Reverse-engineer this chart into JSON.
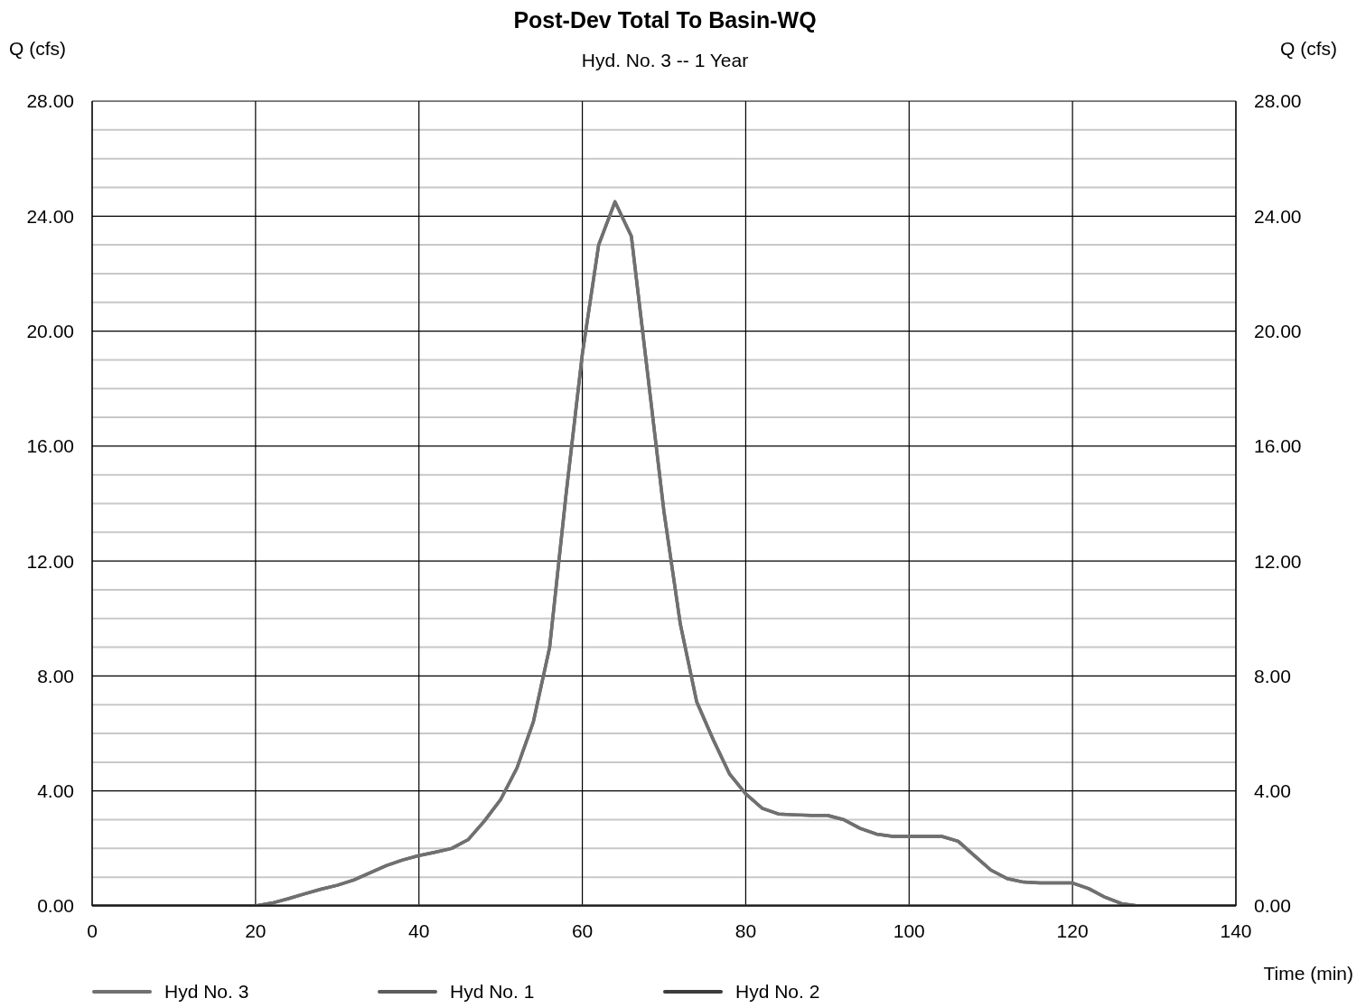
{
  "chart_data": {
    "type": "line",
    "title": "Post-Dev Total To Basin-WQ",
    "subtitle": "Hyd. No. 3 -- 1 Year",
    "xlabel": "Time (min)",
    "ylabel": "Q (cfs)",
    "y2label": "Q (cfs)",
    "x": [
      0,
      2,
      4,
      6,
      8,
      10,
      12,
      14,
      16,
      18,
      20,
      22,
      24,
      26,
      28,
      30,
      32,
      34,
      36,
      38,
      40,
      42,
      44,
      46,
      48,
      50,
      52,
      54,
      56,
      58,
      60,
      62,
      64,
      66,
      68,
      70,
      72,
      74,
      76,
      78,
      80,
      82,
      84,
      86,
      88,
      90,
      92,
      94,
      96,
      98,
      100,
      102,
      104,
      106,
      108,
      110,
      112,
      114,
      116,
      118,
      120,
      122,
      124,
      126,
      128,
      130,
      132,
      134,
      136,
      138,
      140
    ],
    "series": [
      {
        "name": "Hyd No. 3",
        "color": "#707070",
        "values": [
          0,
          0,
          0,
          0,
          0,
          0,
          0,
          0,
          0,
          0,
          0,
          0.1,
          0.25,
          0.42,
          0.58,
          0.72,
          0.9,
          1.15,
          1.4,
          1.6,
          1.75,
          1.87,
          2.0,
          2.3,
          2.95,
          3.7,
          4.8,
          6.4,
          9.0,
          14.3,
          19.2,
          23.0,
          24.5,
          23.3,
          18.5,
          13.7,
          9.8,
          7.1,
          5.8,
          4.6,
          3.9,
          3.4,
          3.2,
          3.17,
          3.15,
          3.15,
          3.0,
          2.7,
          2.5,
          2.42,
          2.42,
          2.42,
          2.42,
          2.25,
          1.75,
          1.25,
          0.95,
          0.83,
          0.8,
          0.8,
          0.8,
          0.6,
          0.3,
          0.08,
          0,
          0,
          0,
          0,
          0,
          0,
          0
        ]
      },
      {
        "name": "Hyd No. 1",
        "color": "#5c5c5c",
        "values": [
          0,
          0,
          0,
          0,
          0,
          0,
          0,
          0,
          0,
          0,
          0,
          0.1,
          0.25,
          0.42,
          0.58,
          0.72,
          0.9,
          1.15,
          1.4,
          1.6,
          1.75,
          1.87,
          2.0,
          2.3,
          2.95,
          3.7,
          4.8,
          6.4,
          9.0,
          14.3,
          19.2,
          23.0,
          24.5,
          23.3,
          18.5,
          13.7,
          9.8,
          7.1,
          5.8,
          4.6,
          3.9,
          3.4,
          3.2,
          3.17,
          3.15,
          3.15,
          3.0,
          2.7,
          2.5,
          2.42,
          2.42,
          2.42,
          2.42,
          2.25,
          1.75,
          1.25,
          0.95,
          0.83,
          0.8,
          0.8,
          0.8,
          0.6,
          0.3,
          0.08,
          0,
          0,
          0,
          0,
          0,
          0,
          0
        ]
      },
      {
        "name": "Hyd No. 2",
        "color": "#3c3c3c",
        "values": [
          0,
          0,
          0,
          0,
          0,
          0,
          0,
          0,
          0,
          0,
          0,
          0,
          0,
          0,
          0,
          0,
          0,
          0,
          0,
          0,
          0,
          0,
          0,
          0,
          0,
          0,
          0,
          0,
          0,
          0,
          0,
          0,
          0,
          0,
          0,
          0,
          0,
          0,
          0,
          0,
          0,
          0,
          0,
          0,
          0,
          0,
          0,
          0,
          0,
          0,
          0,
          0,
          0,
          0,
          0,
          0,
          0,
          0,
          0,
          0,
          0,
          0,
          0,
          0,
          0,
          0,
          0,
          0,
          0,
          0,
          0
        ]
      }
    ],
    "xlim": [
      0,
      140
    ],
    "xticks": [
      0,
      20,
      40,
      60,
      80,
      100,
      120,
      140
    ],
    "ylim": [
      0,
      28
    ],
    "yticks": [
      {
        "value": 0,
        "label": "0.00"
      },
      {
        "value": 1,
        "label": null
      },
      {
        "value": 2,
        "label": null
      },
      {
        "value": 3,
        "label": null
      },
      {
        "value": 4,
        "label": "4.00"
      },
      {
        "value": 5,
        "label": null
      },
      {
        "value": 6,
        "label": null
      },
      {
        "value": 7,
        "label": null
      },
      {
        "value": 8,
        "label": "8.00"
      },
      {
        "value": 9,
        "label": null
      },
      {
        "value": 10,
        "label": null
      },
      {
        "value": 11,
        "label": null
      },
      {
        "value": 12,
        "label": "12.00"
      },
      {
        "value": 13,
        "label": null
      },
      {
        "value": 14,
        "label": null
      },
      {
        "value": 15,
        "label": null
      },
      {
        "value": 16,
        "label": "16.00"
      },
      {
        "value": 17,
        "label": null
      },
      {
        "value": 18,
        "label": null
      },
      {
        "value": 19,
        "label": null
      },
      {
        "value": 20,
        "label": "20.00"
      },
      {
        "value": 21,
        "label": null
      },
      {
        "value": 22,
        "label": null
      },
      {
        "value": 23,
        "label": null
      },
      {
        "value": 24,
        "label": "24.00"
      },
      {
        "value": 25,
        "label": null
      },
      {
        "value": 26,
        "label": null
      },
      {
        "value": 27,
        "label": null
      },
      {
        "value": 28,
        "label": "28.00"
      }
    ],
    "y2lim": [
      0,
      28
    ],
    "y2ticks": [
      {
        "value": 0,
        "label": "0.00"
      },
      {
        "value": 4,
        "label": "4.00"
      },
      {
        "value": 8,
        "label": "8.00"
      },
      {
        "value": 12,
        "label": "12.00"
      },
      {
        "value": 16,
        "label": "16.00"
      },
      {
        "value": 20,
        "label": "20.00"
      },
      {
        "value": 24,
        "label": "24.00"
      },
      {
        "value": 28,
        "label": "28.00"
      }
    ],
    "grid": true,
    "legend": "bottom left",
    "marker": "none",
    "line_style": "solid"
  }
}
